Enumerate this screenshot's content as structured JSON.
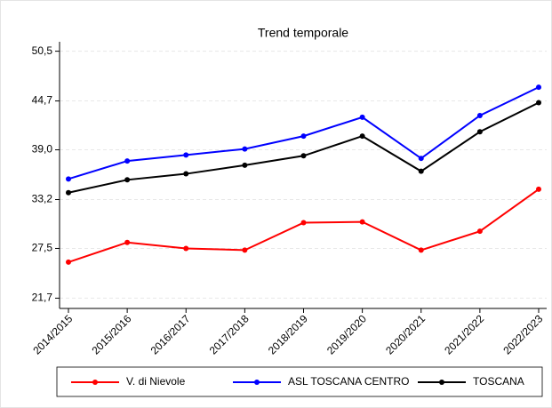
{
  "chart_data": {
    "type": "line",
    "title": "Trend temporale",
    "categories": [
      "2014/2015",
      "2015/2016",
      "2016/2017",
      "2017/2018",
      "2018/2019",
      "2019/2020",
      "2020/2021",
      "2021/2022",
      "2022/2023"
    ],
    "series": [
      {
        "name": "V. di Nievole",
        "color": "#ff0000",
        "values": [
          25.9,
          28.2,
          27.5,
          27.3,
          30.5,
          30.6,
          27.3,
          29.5,
          34.4
        ]
      },
      {
        "name": "ASL TOSCANA CENTRO",
        "color": "#0000ff",
        "values": [
          35.6,
          37.7,
          38.4,
          39.1,
          40.6,
          42.8,
          38.0,
          43.0,
          46.3
        ]
      },
      {
        "name": "TOSCANA",
        "color": "#000000",
        "values": [
          34.0,
          35.5,
          36.2,
          37.2,
          38.3,
          40.6,
          36.5,
          41.1,
          44.5
        ]
      }
    ],
    "ylim": [
      20.5,
      51.6
    ],
    "yticks": [
      {
        "value": 21.7,
        "label": "21,7"
      },
      {
        "value": 27.5,
        "label": "27,5"
      },
      {
        "value": 33.2,
        "label": "33,2"
      },
      {
        "value": 39.0,
        "label": "39,0"
      },
      {
        "value": 44.7,
        "label": "44,7"
      },
      {
        "value": 50.5,
        "label": "50,5"
      }
    ],
    "grid": true,
    "legend": "bottom"
  }
}
